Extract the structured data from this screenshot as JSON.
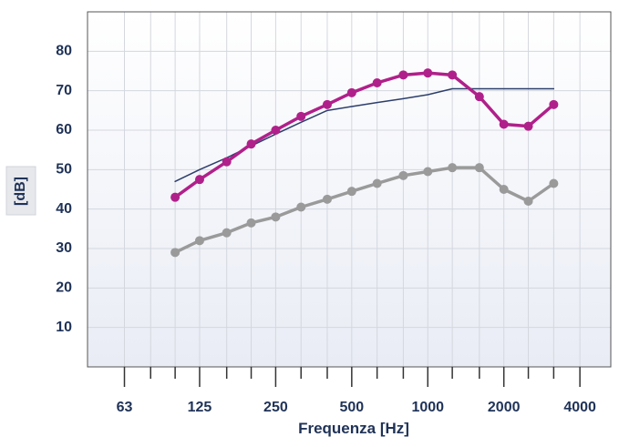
{
  "chart_data": {
    "type": "line",
    "xlabel": "Frequenza [Hz]",
    "ylabel": "[dB]",
    "x_scale": "log",
    "x_ticks": [
      63,
      125,
      250,
      500,
      1000,
      2000,
      4000
    ],
    "x_tick_labels": [
      "63",
      "125",
      "250",
      "500",
      "1000",
      "2000",
      "4000"
    ],
    "y_ticks": [
      10,
      20,
      30,
      40,
      50,
      60,
      70,
      80
    ],
    "y_tick_labels": [
      "10",
      "20",
      "30",
      "40",
      "50",
      "60",
      "70",
      "80"
    ],
    "ylim": [
      0,
      90
    ],
    "xlim": [
      45,
      5300
    ],
    "grid": true,
    "x": [
      100,
      125,
      160,
      200,
      250,
      315,
      400,
      500,
      630,
      800,
      1000,
      1250,
      1600,
      2000,
      2500,
      3150
    ],
    "series": [
      {
        "color": "#b0208a",
        "markers": true,
        "values": [
          43,
          47.5,
          52,
          56.5,
          60,
          63.5,
          66.5,
          69.5,
          72,
          74,
          74.5,
          74,
          68.5,
          61.5,
          61,
          66.5
        ]
      },
      {
        "color": "#9a9a9a",
        "markers": true,
        "values": [
          29,
          32,
          34,
          36.5,
          38,
          40.5,
          42.5,
          44.5,
          46.5,
          48.5,
          49.5,
          50.5,
          50.5,
          45,
          42,
          46.5
        ]
      },
      {
        "color": "#2c3e6b",
        "markers": false,
        "values": [
          47,
          50,
          53,
          56,
          59,
          62,
          65,
          66,
          67,
          68,
          69,
          70.5,
          70.5,
          70.5,
          70.5,
          70.5
        ]
      }
    ]
  }
}
